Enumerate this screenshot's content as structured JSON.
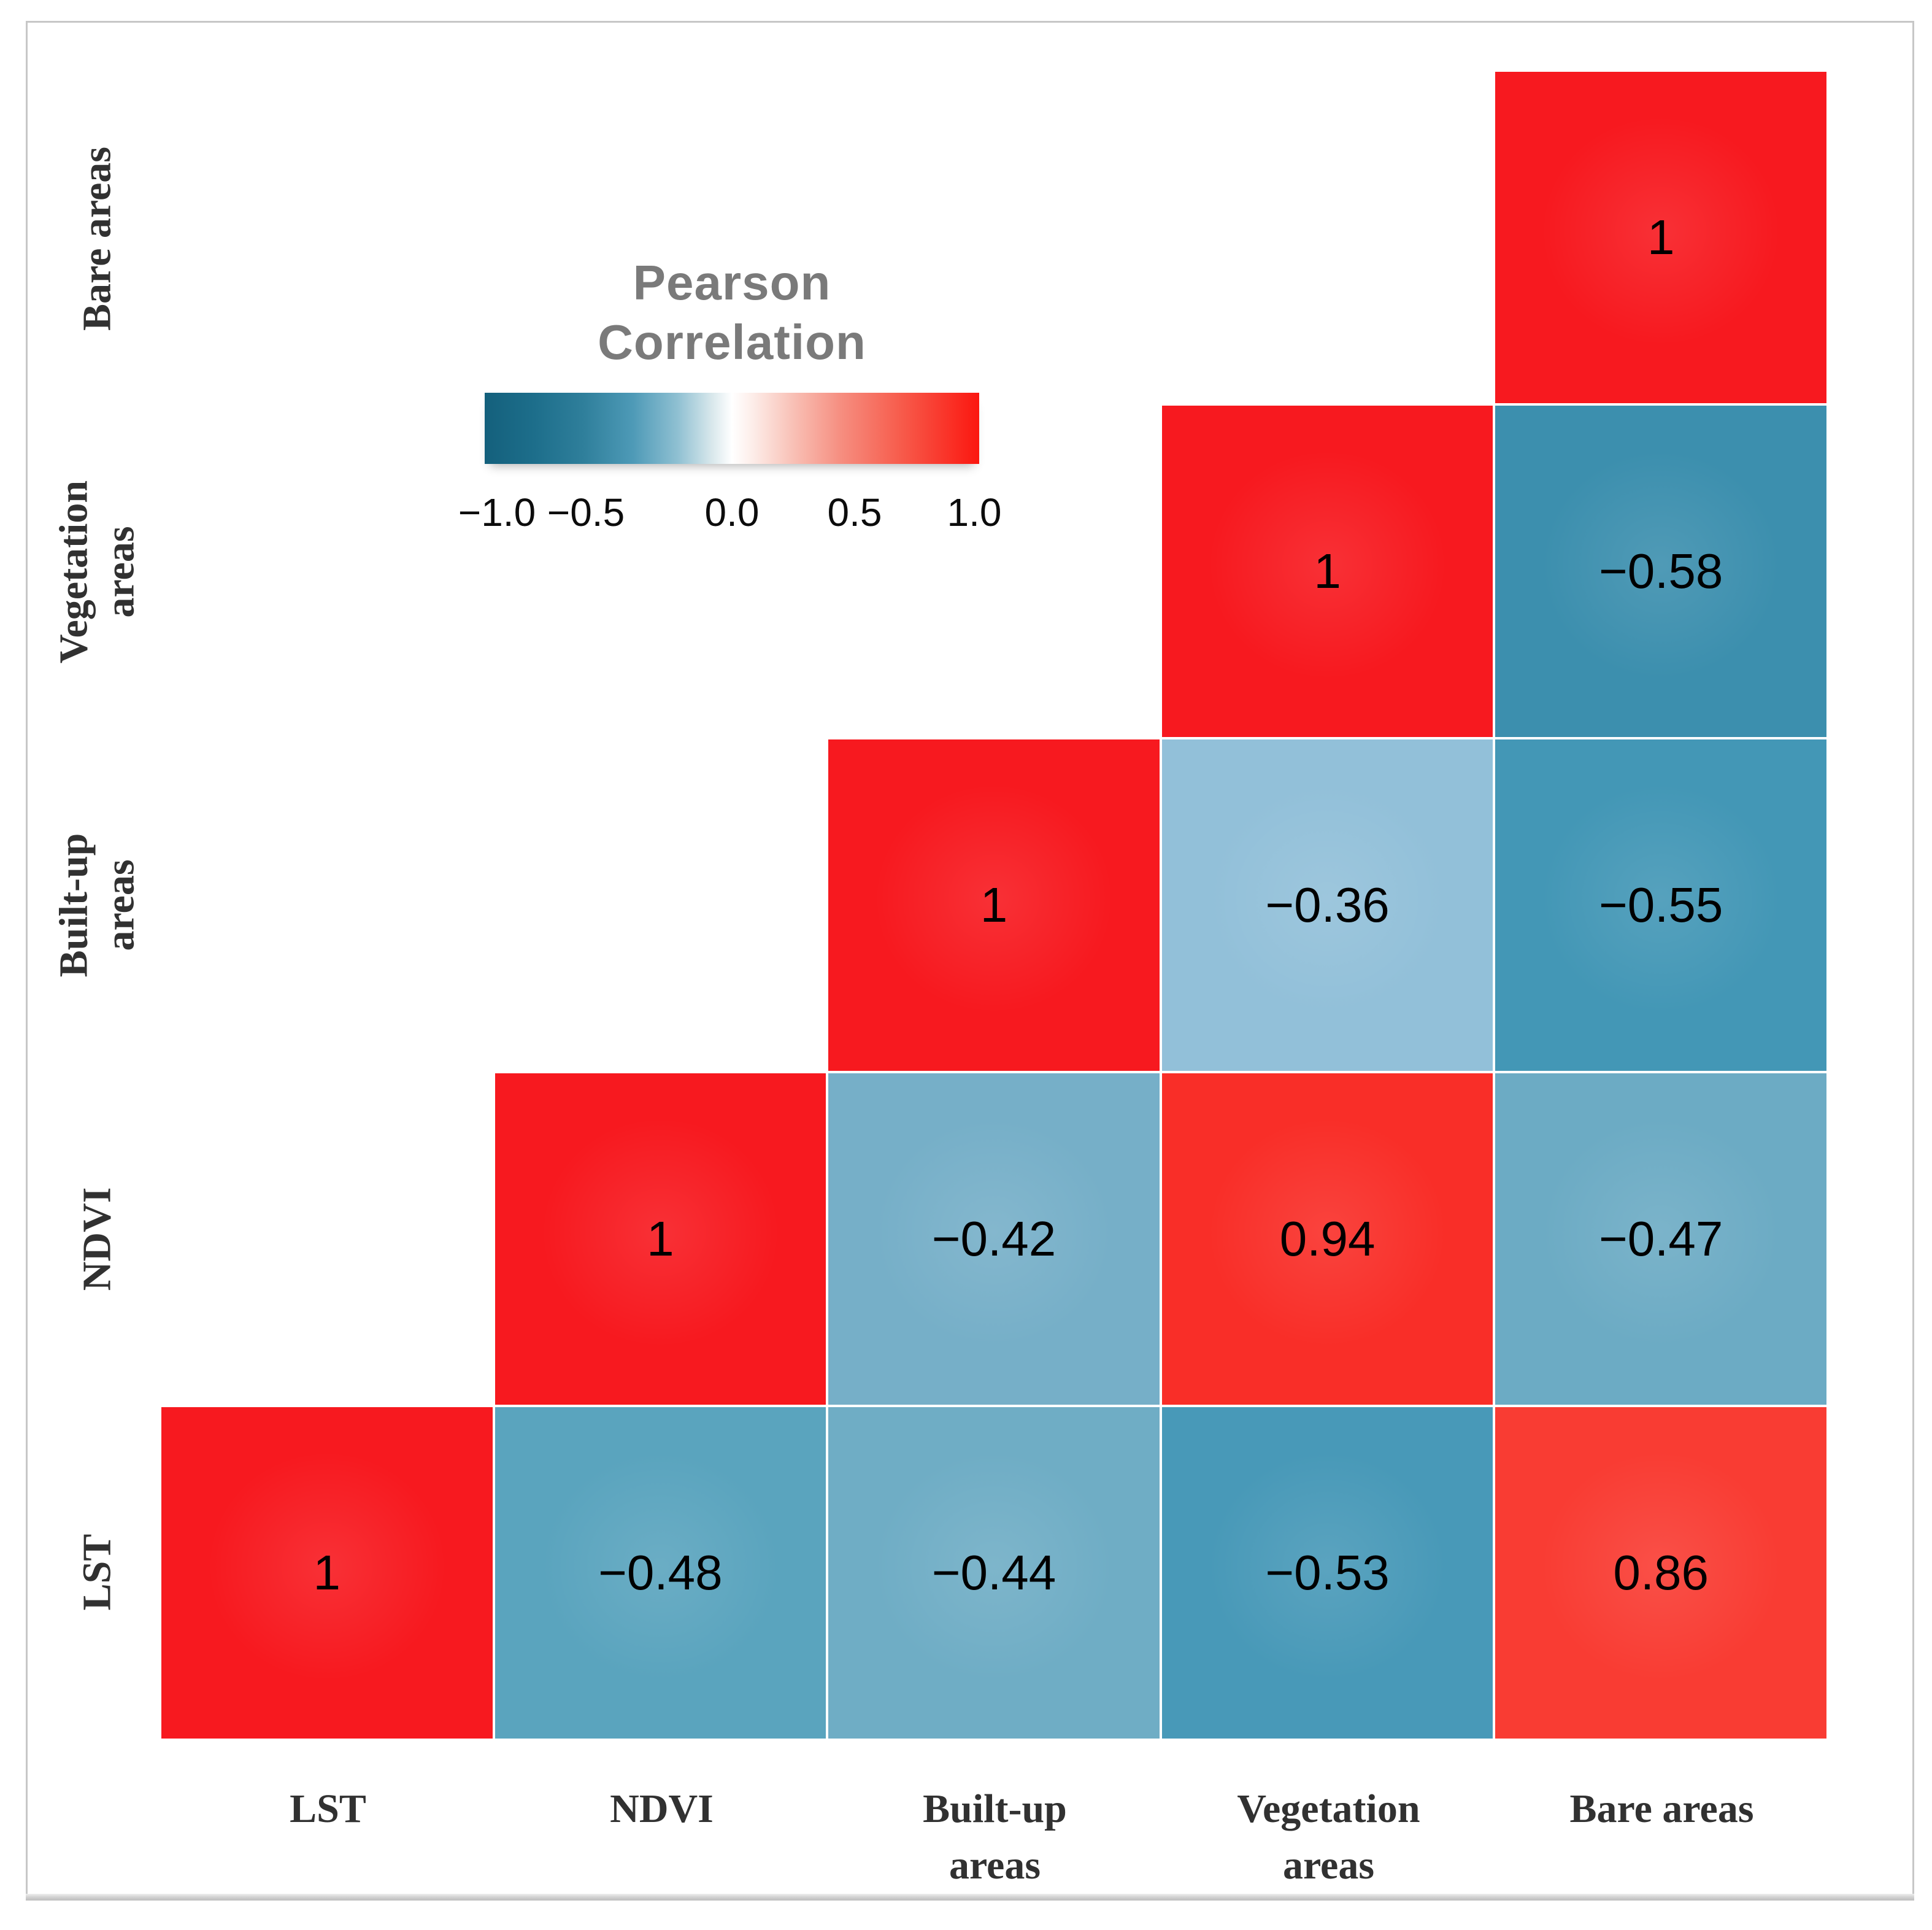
{
  "figure": {
    "background": "#ffffff",
    "frame_color": "#c7c7c7"
  },
  "legend": {
    "title_line1": "Pearson",
    "title_line2": "Correlation",
    "title_color": "#7a7a7a",
    "tick_labels": [
      "−1.0",
      "−0.5",
      "0.0",
      "0.5",
      "1.0"
    ],
    "gradient_left_color": "#14607c",
    "gradient_mid_color": "#ffffff",
    "gradient_right_color": "#fb1710"
  },
  "chart_data": {
    "type": "heatmap",
    "title": "Pearson Correlation",
    "colorscale_range": [
      -1.0,
      1.0
    ],
    "variables": [
      "LST",
      "NDVI",
      "Built-up areas",
      "Vegetation areas",
      "Bare areas"
    ],
    "x_axis_labels": [
      {
        "lines": [
          "LST"
        ]
      },
      {
        "lines": [
          "NDVI"
        ]
      },
      {
        "lines": [
          "Built-up",
          "areas"
        ]
      },
      {
        "lines": [
          "Vegetation",
          "areas"
        ]
      },
      {
        "lines": [
          "Bare areas"
        ]
      }
    ],
    "y_axis_labels_top_to_bottom": [
      {
        "lines": [
          "Bare areas"
        ]
      },
      {
        "lines": [
          "Vegetation",
          "areas"
        ]
      },
      {
        "lines": [
          "Built-up",
          "areas"
        ]
      },
      {
        "lines": [
          "NDVI"
        ]
      },
      {
        "lines": [
          "LST"
        ]
      }
    ],
    "rows_top_to_bottom": [
      "Bare areas",
      "Vegetation areas",
      "Built-up areas",
      "NDVI",
      "LST"
    ],
    "cols_left_to_right": [
      "LST",
      "NDVI",
      "Built-up areas",
      "Vegetation areas",
      "Bare areas"
    ],
    "cells": [
      {
        "row": "Bare areas",
        "col": "Bare areas",
        "value": 1,
        "label": "1",
        "color": "#f7191f"
      },
      {
        "row": "Vegetation areas",
        "col": "Vegetation areas",
        "value": 1,
        "label": "1",
        "color": "#f7191f"
      },
      {
        "row": "Vegetation areas",
        "col": "Bare areas",
        "value": -0.58,
        "label": "−0.58",
        "color": "#3c8fae"
      },
      {
        "row": "Built-up areas",
        "col": "Built-up areas",
        "value": 1,
        "label": "1",
        "color": "#f7191f"
      },
      {
        "row": "Built-up areas",
        "col": "Vegetation areas",
        "value": -0.36,
        "label": "−0.36",
        "color": "#92c0d9"
      },
      {
        "row": "Built-up areas",
        "col": "Bare areas",
        "value": -0.55,
        "label": "−0.55",
        "color": "#4397b6"
      },
      {
        "row": "NDVI",
        "col": "NDVI",
        "value": 1,
        "label": "1",
        "color": "#f7191f"
      },
      {
        "row": "NDVI",
        "col": "Built-up areas",
        "value": -0.42,
        "label": "−0.42",
        "color": "#76afc8"
      },
      {
        "row": "NDVI",
        "col": "Vegetation areas",
        "value": 0.94,
        "label": "0.94",
        "color": "#f92e28"
      },
      {
        "row": "NDVI",
        "col": "Bare areas",
        "value": -0.47,
        "label": "−0.47",
        "color": "#6cabc4"
      },
      {
        "row": "LST",
        "col": "LST",
        "value": 1,
        "label": "1",
        "color": "#f7191f"
      },
      {
        "row": "LST",
        "col": "NDVI",
        "value": -0.48,
        "label": "−0.48",
        "color": "#5aa4be"
      },
      {
        "row": "LST",
        "col": "Built-up areas",
        "value": -0.44,
        "label": "−0.44",
        "color": "#6fadc5"
      },
      {
        "row": "LST",
        "col": "Vegetation areas",
        "value": -0.53,
        "label": "−0.53",
        "color": "#4899b8"
      },
      {
        "row": "LST",
        "col": "Bare areas",
        "value": 0.86,
        "label": "0.86",
        "color": "#f93c33"
      }
    ]
  }
}
